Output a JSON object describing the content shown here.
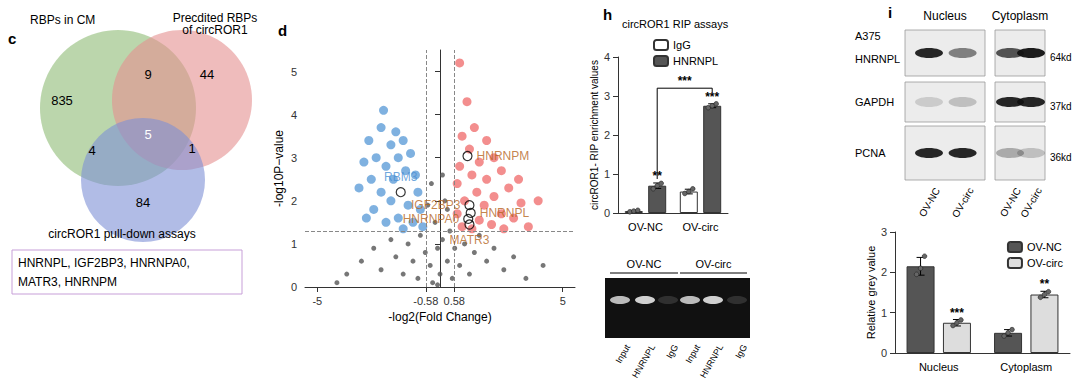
{
  "chart_data": [
    {
      "type": "venn",
      "panel": "c",
      "sets": [
        {
          "label": "RBPs in CM",
          "color": "#8dbb74"
        },
        {
          "label": "Precdited RBPs\nof circROR1",
          "color": "#e58f8f"
        },
        {
          "label": "circROR1 pull-down assays",
          "color": "#7d8fd6"
        }
      ],
      "counts": [
        {
          "sets": [
            0
          ],
          "value": 835
        },
        {
          "sets": [
            1
          ],
          "value": 44
        },
        {
          "sets": [
            2
          ],
          "value": 84
        },
        {
          "sets": [
            0,
            1
          ],
          "value": 9
        },
        {
          "sets": [
            0,
            2
          ],
          "value": 4
        },
        {
          "sets": [
            1,
            2
          ],
          "value": 1
        },
        {
          "sets": [
            0,
            1,
            2
          ],
          "value": 5
        }
      ],
      "box_lines": [
        "HNRNPL, IGF2BP3, HNRNPA0,",
        "MATR3, HNRNPM"
      ]
    },
    {
      "type": "scatter",
      "panel": "d",
      "xlabel": "-log2(Fold Change)",
      "ylabel": "-log10P−value",
      "xlim": [
        -5.5,
        5.5
      ],
      "xticks": [
        -5,
        -0.58,
        0.58,
        5
      ],
      "ylim": [
        0,
        5.5
      ],
      "yticks": [
        0,
        1,
        2,
        3,
        4,
        5
      ],
      "grid": false,
      "ref_lines": {
        "x": [
          -0.58,
          0.58
        ],
        "y": [
          1.3
        ]
      },
      "series": [
        {
          "color": "#555555",
          "points": [
            [
              -3.8,
              0.3
            ],
            [
              -3.2,
              0.6
            ],
            [
              -2.7,
              0.9
            ],
            [
              -2.4,
              0.4
            ],
            [
              -2.0,
              1.1
            ],
            [
              -1.8,
              0.7
            ],
            [
              -1.5,
              0.3
            ],
            [
              -1.3,
              1.0
            ],
            [
              -1.1,
              0.6
            ],
            [
              -0.9,
              0.2
            ],
            [
              -0.8,
              1.2
            ],
            [
              -0.6,
              0.8
            ],
            [
              -0.4,
              0.5
            ],
            [
              -0.3,
              0.1
            ],
            [
              -0.2,
              1.5
            ],
            [
              -0.1,
              0.9
            ],
            [
              0,
              0.3
            ],
            [
              0.1,
              1.1
            ],
            [
              0.2,
              2.0
            ],
            [
              0.3,
              0.6
            ],
            [
              0.4,
              1.3
            ],
            [
              0.5,
              0.2
            ],
            [
              0.6,
              0.9
            ],
            [
              0.8,
              0.5
            ],
            [
              1.0,
              1.0
            ],
            [
              1.2,
              0.3
            ],
            [
              1.4,
              0.8
            ],
            [
              1.6,
              1.2
            ],
            [
              1.9,
              0.6
            ],
            [
              2.2,
              0.9
            ],
            [
              2.6,
              0.4
            ],
            [
              3.0,
              0.7
            ],
            [
              3.5,
              0.2
            ],
            [
              -0.35,
              2.4
            ],
            [
              0.3,
              1.8
            ],
            [
              -0.5,
              1.9
            ],
            [
              0.1,
              2.6
            ],
            [
              -4.2,
              0.1
            ],
            [
              4.2,
              0.5
            ],
            [
              -0.1,
              0.05
            ]
          ]
        },
        {
          "color": "#5f9ed8",
          "points": [
            [
              -2.3,
              4.1
            ],
            [
              -2.4,
              3.7
            ],
            [
              -1.8,
              3.6
            ],
            [
              -2.9,
              3.4
            ],
            [
              -2.0,
              3.3
            ],
            [
              -1.5,
              3.4
            ],
            [
              -2.6,
              3.0
            ],
            [
              -1.7,
              3.0
            ],
            [
              -1.2,
              3.1
            ],
            [
              -3.1,
              2.9
            ],
            [
              -2.2,
              2.8
            ],
            [
              -1.4,
              2.7
            ],
            [
              -2.8,
              2.5
            ],
            [
              -1.9,
              2.5
            ],
            [
              -1.0,
              2.6
            ],
            [
              -3.3,
              2.3
            ],
            [
              -2.4,
              2.2
            ],
            [
              -0.9,
              2.2
            ],
            [
              -2.0,
              2.0
            ],
            [
              -1.3,
              1.9
            ],
            [
              -2.7,
              1.8
            ],
            [
              -0.8,
              1.8
            ],
            [
              -1.7,
              1.6
            ],
            [
              -1.1,
              1.5
            ],
            [
              -2.2,
              1.5
            ],
            [
              -0.7,
              1.4
            ],
            [
              -1.5,
              1.35
            ],
            [
              -3.0,
              1.6
            ]
          ]
        },
        {
          "color": "#f07272",
          "points": [
            [
              0.8,
              5.2
            ],
            [
              1.1,
              4.3
            ],
            [
              1.4,
              3.7
            ],
            [
              0.9,
              3.5
            ],
            [
              1.9,
              3.4
            ],
            [
              1.2,
              3.2
            ],
            [
              2.2,
              3.0
            ],
            [
              1.6,
              2.9
            ],
            [
              0.8,
              2.8
            ],
            [
              2.5,
              2.7
            ],
            [
              1.3,
              2.6
            ],
            [
              1.9,
              2.5
            ],
            [
              0.7,
              2.4
            ],
            [
              2.8,
              2.3
            ],
            [
              1.5,
              2.2
            ],
            [
              2.2,
              2.1
            ],
            [
              1.0,
              2.0
            ],
            [
              3.3,
              1.95
            ],
            [
              1.8,
              1.9
            ],
            [
              2.5,
              1.7
            ],
            [
              0.7,
              1.7
            ],
            [
              3.0,
              1.6
            ],
            [
              1.6,
              1.55
            ],
            [
              2.1,
              1.45
            ],
            [
              0.9,
              1.4
            ],
            [
              3.6,
              1.4
            ],
            [
              1.3,
              1.35
            ],
            [
              2.6,
              1.35
            ],
            [
              4.0,
              2.0
            ],
            [
              3.2,
              2.5
            ]
          ]
        }
      ],
      "annotations": [
        {
          "text": "HNRNPM",
          "x": 1.12,
          "y": 3.04,
          "color": "#b5651d"
        },
        {
          "text": "IGF2BP3",
          "x": 1.2,
          "y": 1.9,
          "color": "#b5651d"
        },
        {
          "text": "HNRNPL",
          "x": 1.25,
          "y": 1.72,
          "color": "#b5651d"
        },
        {
          "text": "HNRNPA0",
          "x": 1.15,
          "y": 1.58,
          "color": "#b5651d"
        },
        {
          "text": "MATR3",
          "x": 1.2,
          "y": 1.45,
          "color": "#b5651d"
        },
        {
          "text": "RBM3",
          "x": -1.6,
          "y": 2.2,
          "color": "#4a8fd4"
        }
      ]
    },
    {
      "type": "bar",
      "panel": "h",
      "title": "circROR1 RIP assays",
      "categories": [
        "OV-NC",
        "OV-circ"
      ],
      "ylabel": "circROR1- RIP enrichment values",
      "ylim": [
        0,
        4
      ],
      "yticks": [
        0,
        1,
        2,
        3,
        4
      ],
      "grid": false,
      "legend": "top-left",
      "series": [
        {
          "name": "IgG",
          "color": "#ffffff",
          "values": [
            0.05,
            0.55
          ],
          "errors": [
            0.02,
            0.06
          ],
          "points": [
            [
              0.03,
              0.05,
              0.07
            ],
            [
              0.5,
              0.55,
              0.62
            ]
          ],
          "significance": [
            null,
            null
          ]
        },
        {
          "name": "HNRNPL",
          "color": "#555555",
          "values": [
            0.7,
            2.75
          ],
          "errors": [
            0.07,
            0.05
          ],
          "points": [
            [
              0.62,
              0.7,
              0.76
            ],
            [
              2.7,
              2.75,
              2.8
            ]
          ],
          "significance": [
            "**",
            "***"
          ]
        }
      ],
      "comparison": {
        "series": "HNRNPL",
        "label": "***"
      }
    },
    {
      "type": "gel",
      "groups": [
        "OV-NC",
        "OV-circ"
      ],
      "lanes": [
        "Input",
        "HNRNPL",
        "IgG"
      ]
    },
    {
      "type": "blot",
      "panel": "i",
      "cell_line": "A375",
      "compartments": [
        "Nucleus",
        "Cytoplasm"
      ],
      "proteins": [
        {
          "name": "HNRNPL",
          "size": "64kd"
        },
        {
          "name": "GAPDH",
          "size": "37kd"
        },
        {
          "name": "PCNA",
          "size": "36kd"
        }
      ],
      "lanes": [
        "OV-NC",
        "OV-circ"
      ]
    },
    {
      "type": "bar",
      "categories": [
        "Nucleus",
        "Cytoplasm"
      ],
      "ylabel": "Relative grey value",
      "ylim": [
        0,
        3
      ],
      "yticks": [
        0,
        1,
        2,
        3
      ],
      "grid": false,
      "legend": "top-right",
      "series": [
        {
          "name": "OV-NC",
          "color": "#555555",
          "values": [
            2.15,
            0.5
          ],
          "errors": [
            0.22,
            0.08
          ],
          "points": [
            [
              1.95,
              2.1,
              2.4
            ],
            [
              0.42,
              0.5,
              0.58
            ]
          ],
          "significance": [
            null,
            null
          ]
        },
        {
          "name": "OV-circ",
          "color": "#dddddd",
          "values": [
            0.75,
            1.45
          ],
          "errors": [
            0.08,
            0.08
          ],
          "points": [
            [
              0.68,
              0.75,
              0.82
            ],
            [
              1.38,
              1.45,
              1.52
            ]
          ],
          "significance": [
            "***",
            "**"
          ]
        }
      ]
    }
  ]
}
